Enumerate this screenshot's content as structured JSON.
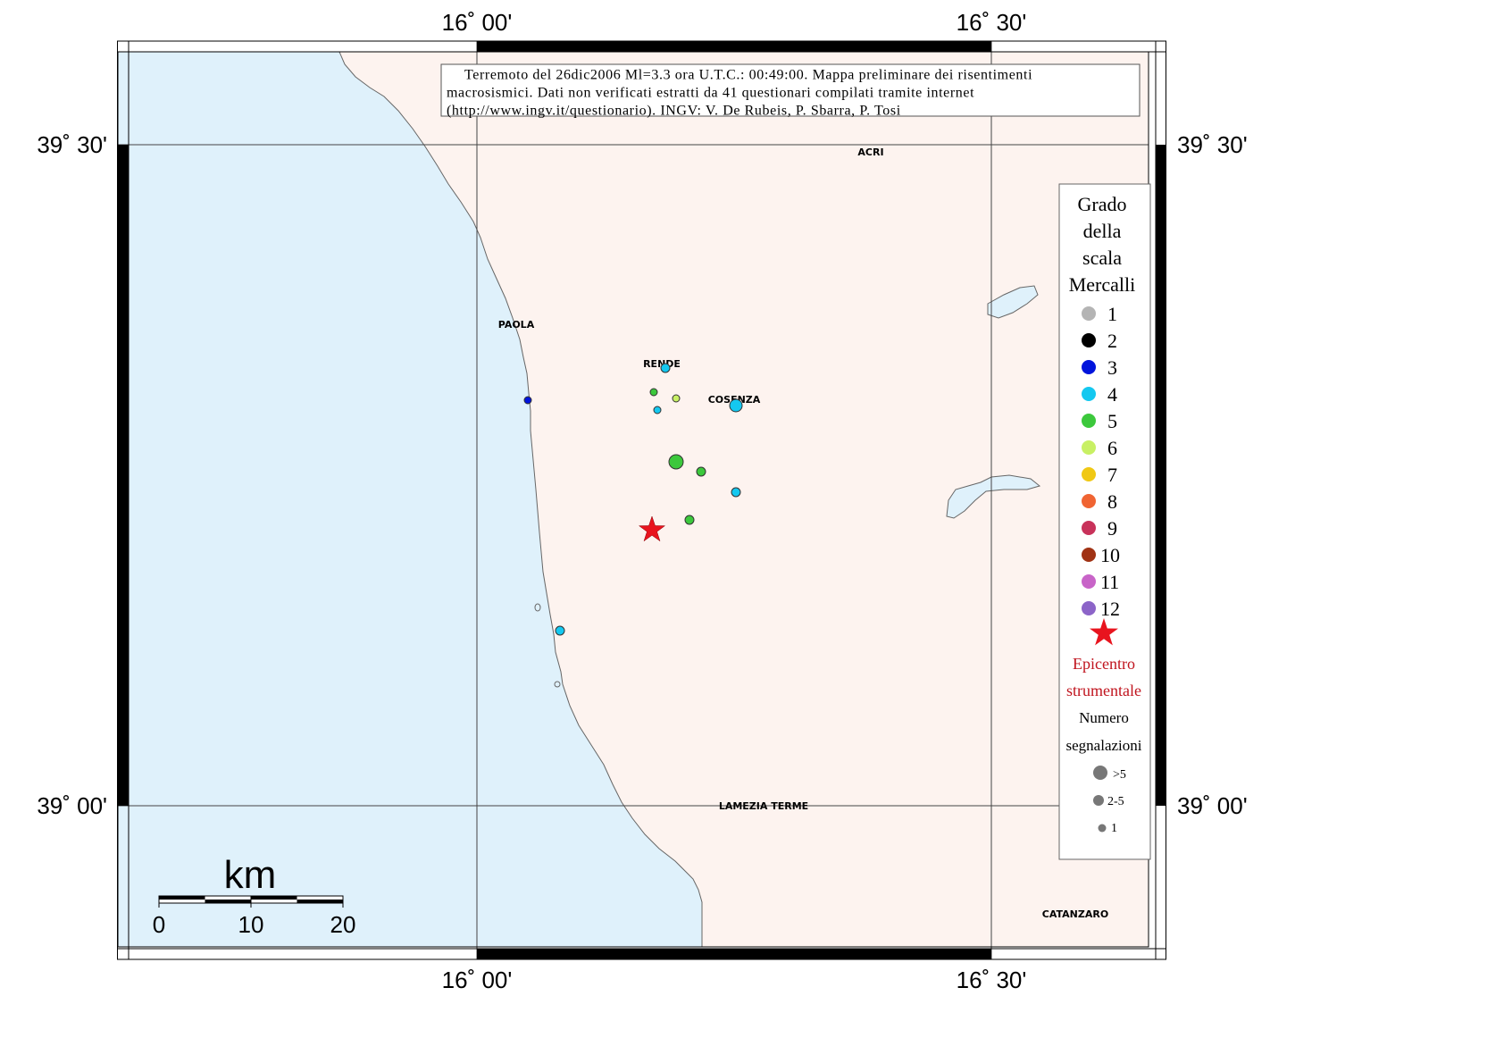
{
  "map": {
    "lon_labels": [
      "16˚ 00'",
      "16˚ 30'"
    ],
    "lat_labels": [
      "39˚ 30'",
      "39˚ 00'"
    ]
  },
  "title_box": {
    "lines": [
      "Terremoto del 26dic2006 Ml=3.3 ora U.T.C.: 00:49:00.  Mappa preliminare dei risentimenti",
      "macrosismici.   Dati non verificati estratti da 41 questionari compilati tramite internet",
      "(http://www.ingv.it/questionario).   INGV: V.  De Rubeis, P.  Sbarra, P.  Tosi"
    ]
  },
  "cities": [
    {
      "id": "acri",
      "label": "ACRI"
    },
    {
      "id": "paola",
      "label": "PAOLA"
    },
    {
      "id": "rende",
      "label": "RENDE"
    },
    {
      "id": "cosenza",
      "label": "COSENZA"
    },
    {
      "id": "lamezia",
      "label": "LAMEZIA TERME"
    },
    {
      "id": "catanzaro",
      "label": "CATANZARO"
    }
  ],
  "legend": {
    "title_lines": [
      "Grado",
      "della",
      "scala",
      "Mercalli"
    ],
    "grades": [
      {
        "label": "1",
        "color": "#b4b4b4"
      },
      {
        "label": "2",
        "color": "#000000"
      },
      {
        "label": "3",
        "color": "#0014dc"
      },
      {
        "label": "4",
        "color": "#14c8f0"
      },
      {
        "label": "5",
        "color": "#3cc83c"
      },
      {
        "label": "6",
        "color": "#c8f064"
      },
      {
        "label": "7",
        "color": "#f0c814"
      },
      {
        "label": "8",
        "color": "#f06432"
      },
      {
        "label": "9",
        "color": "#c8325a"
      },
      {
        "label": "10",
        "color": "#a03214"
      },
      {
        "label": "11",
        "color": "#c864c8"
      },
      {
        "label": "12",
        "color": "#8c64c8"
      }
    ],
    "epicenter_lines": [
      "Epicentro",
      "strumentale"
    ],
    "count_title_lines": [
      "Numero",
      "segnalazioni"
    ],
    "count_sizes": [
      ">5",
      "2-5",
      "1"
    ]
  },
  "observations": [
    {
      "grade": 4,
      "count": "2-5",
      "place": "RENDE"
    },
    {
      "grade": 5,
      "count": "1"
    },
    {
      "grade": 6,
      "count": "1"
    },
    {
      "grade": 4,
      "count": "1"
    },
    {
      "grade": 4,
      "count": ">5",
      "place": "COSENZA"
    },
    {
      "grade": 3,
      "count": "1"
    },
    {
      "grade": 5,
      "count": ">5"
    },
    {
      "grade": 5,
      "count": "2-5"
    },
    {
      "grade": 4,
      "count": "2-5"
    },
    {
      "grade": 5,
      "count": "2-5"
    },
    {
      "grade": 4,
      "count": "2-5"
    }
  ],
  "epicenter_color": "#e8141e",
  "scale_bar": {
    "unit": "km",
    "ticks": [
      "0",
      "10",
      "20"
    ]
  },
  "colors": {
    "sea": "#dff1fb",
    "land": "#fdf3ef"
  }
}
